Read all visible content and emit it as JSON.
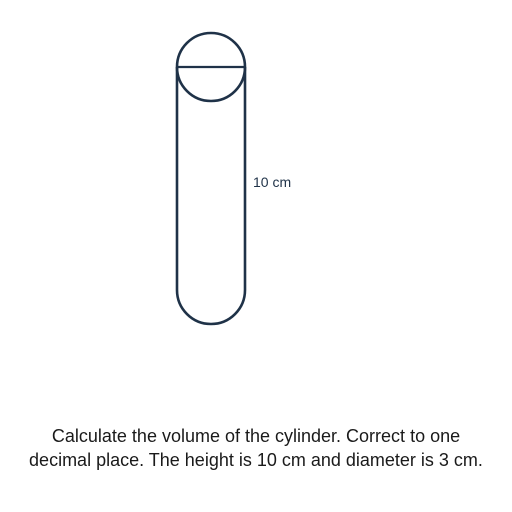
{
  "diagram": {
    "height_label": "10 cm",
    "stroke_color": "#1f3248",
    "shape": "cylinder"
  },
  "question": {
    "line1": "Calculate the volume of the cylinder. Correct to one",
    "line2": "decimal place. The height is 10 cm and diameter is 3 cm."
  }
}
